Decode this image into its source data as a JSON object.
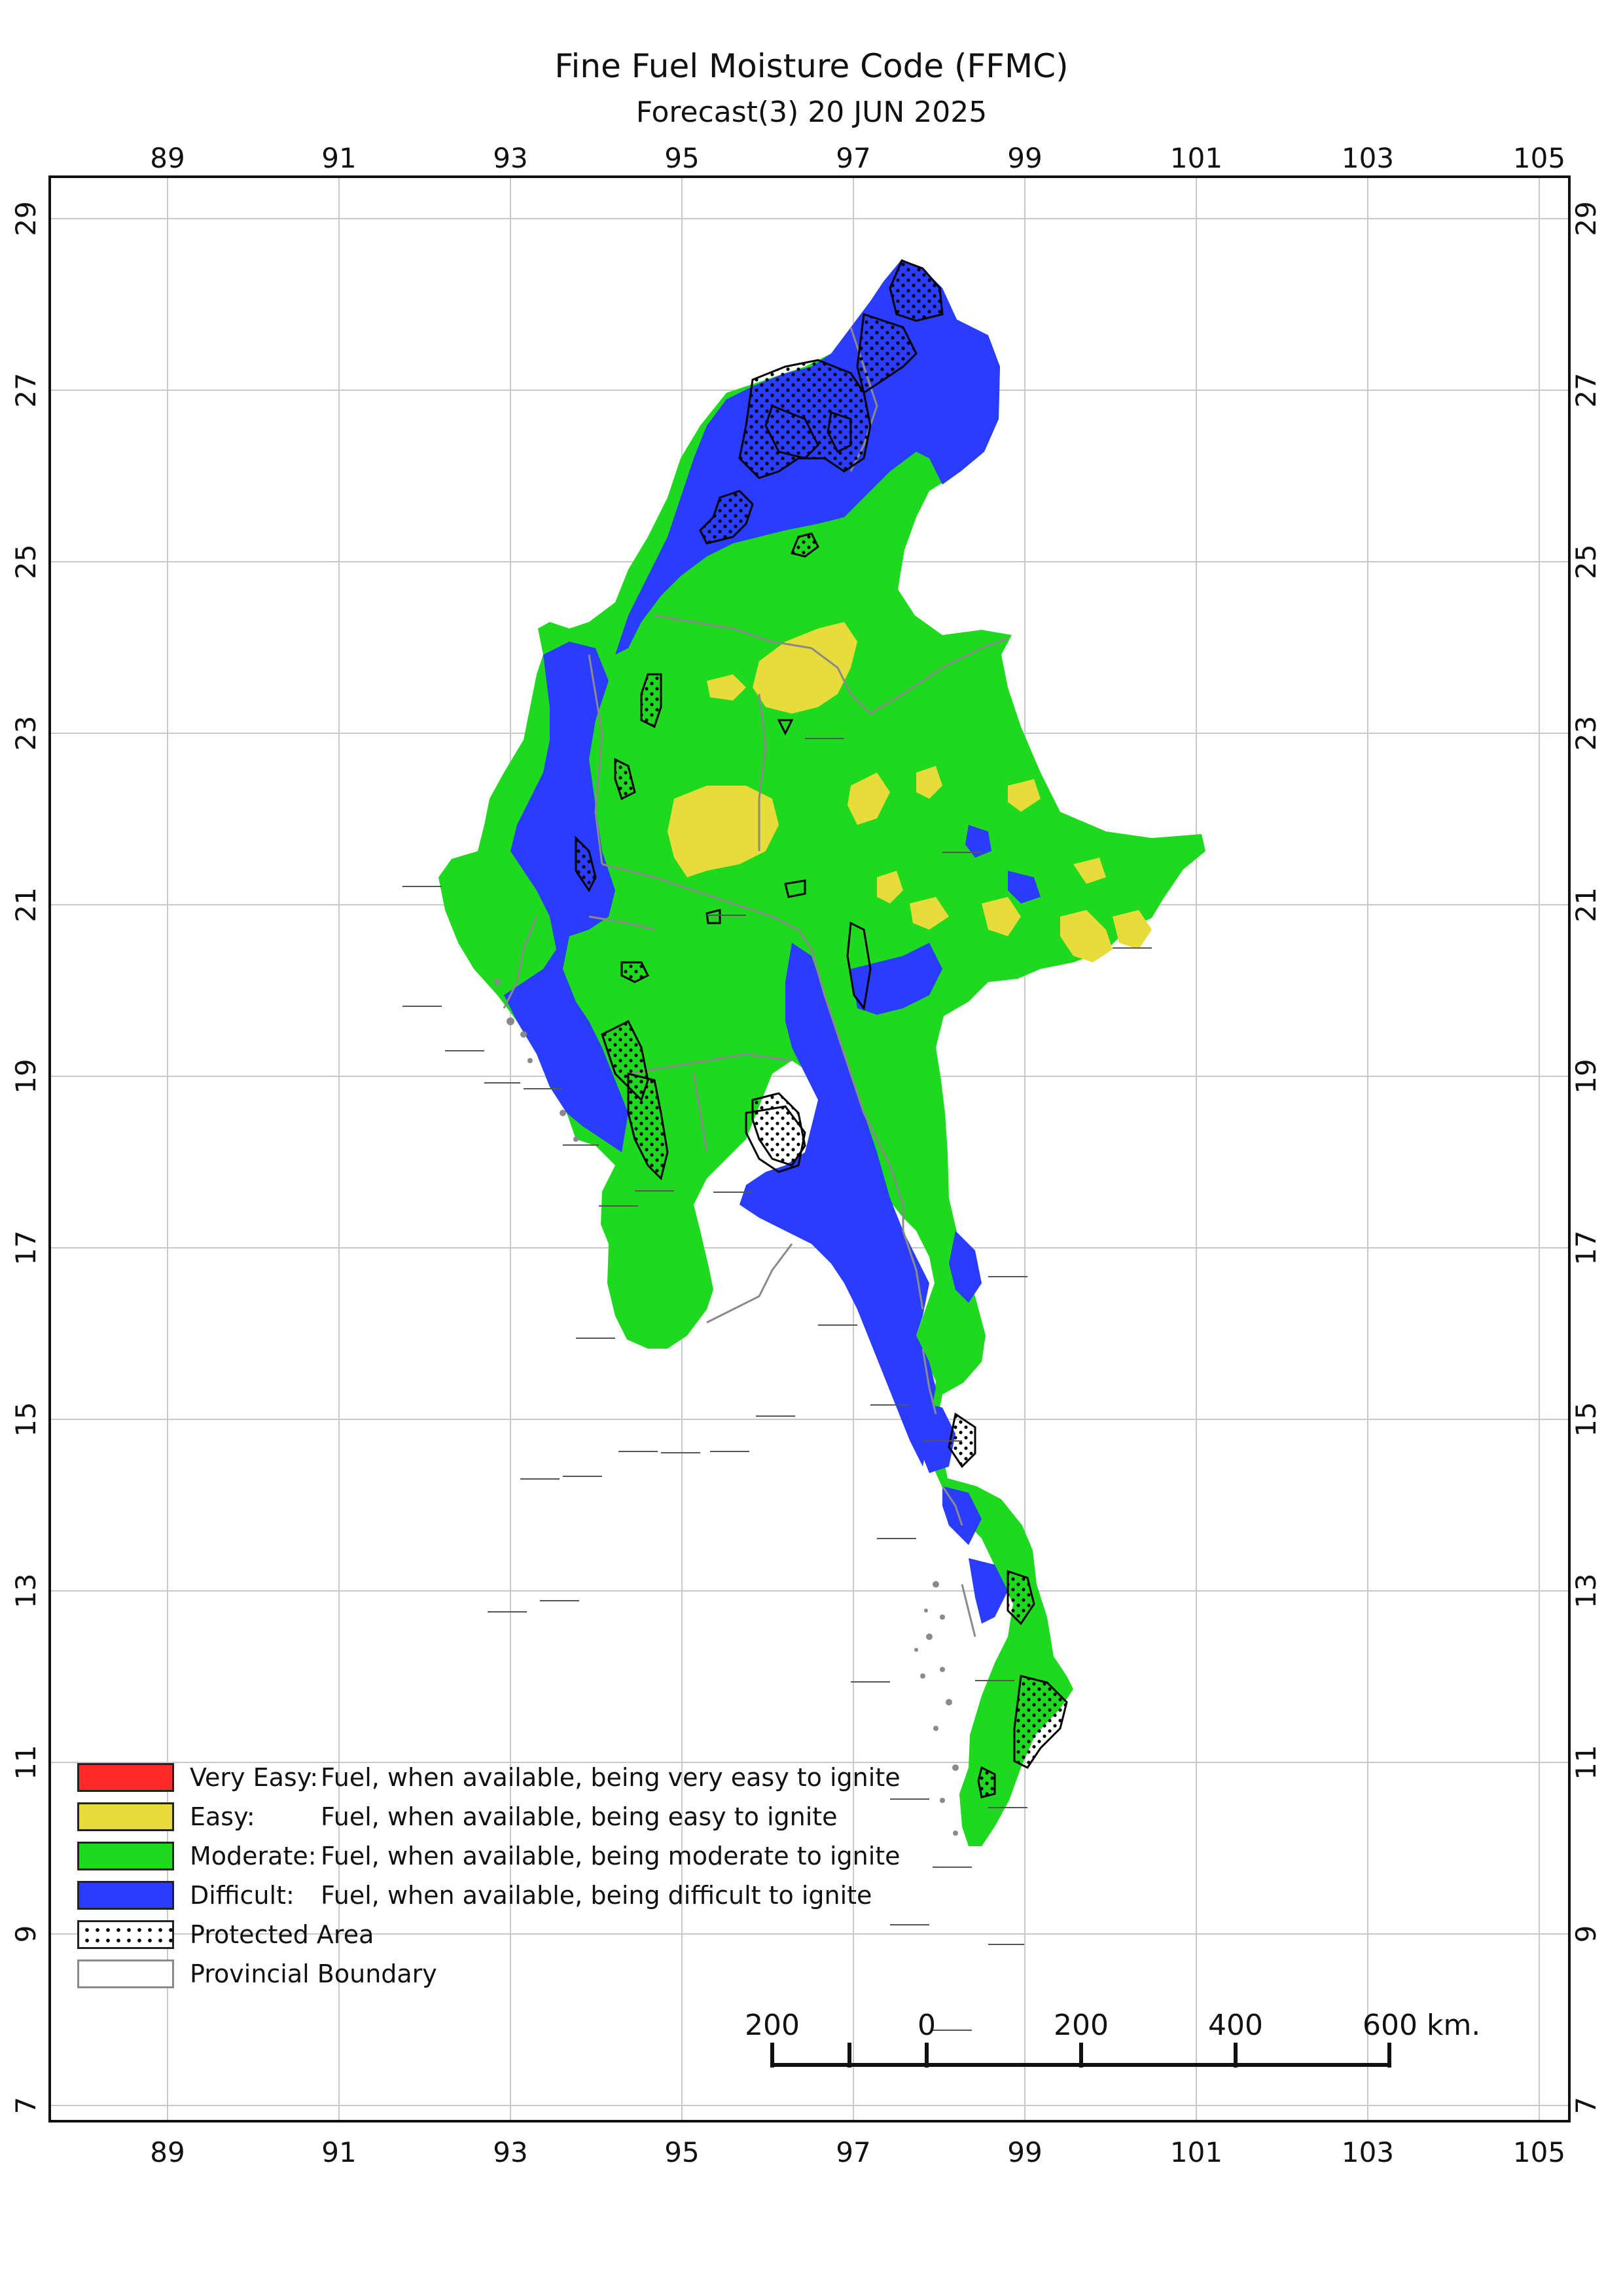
{
  "header": {
    "title": "Fine Fuel Moisture Code (FFMC)",
    "subtitle": "Forecast(3) 20 JUN 2025"
  },
  "axes": {
    "longitude_ticks": [
      "89",
      "91",
      "93",
      "95",
      "97",
      "99",
      "101",
      "103",
      "105"
    ],
    "latitude_ticks": [
      "29",
      "27",
      "25",
      "23",
      "21",
      "19",
      "17",
      "15",
      "13",
      "11",
      "9",
      "7"
    ]
  },
  "legend": {
    "items": [
      {
        "category": "Very Easy:",
        "description": "Fuel, when available, being very easy to ignite",
        "color": "#ff2a2a"
      },
      {
        "category": "Easy:",
        "description": "Fuel, when available, being easy to ignite",
        "color": "#e8dc3a"
      },
      {
        "category": "Moderate:",
        "description": "Fuel, when available, being moderate to ignite",
        "color": "#1ed91e"
      },
      {
        "category": "Difficult:",
        "description": "Fuel, when available, being difficult to ignite",
        "color": "#2a3cff"
      }
    ],
    "protected_area": "Protected Area",
    "provincial_boundary": "Provincial Boundary"
  },
  "scale_bar": {
    "labels": [
      "200",
      "0",
      "200",
      "400",
      "600 km."
    ]
  },
  "colors": {
    "very_easy": "#ff2a2a",
    "easy": "#e8dc3a",
    "moderate": "#1ed91e",
    "difficult": "#2a3cff",
    "boundary": "#8a8a8a",
    "grid": "#c8c8c8"
  }
}
